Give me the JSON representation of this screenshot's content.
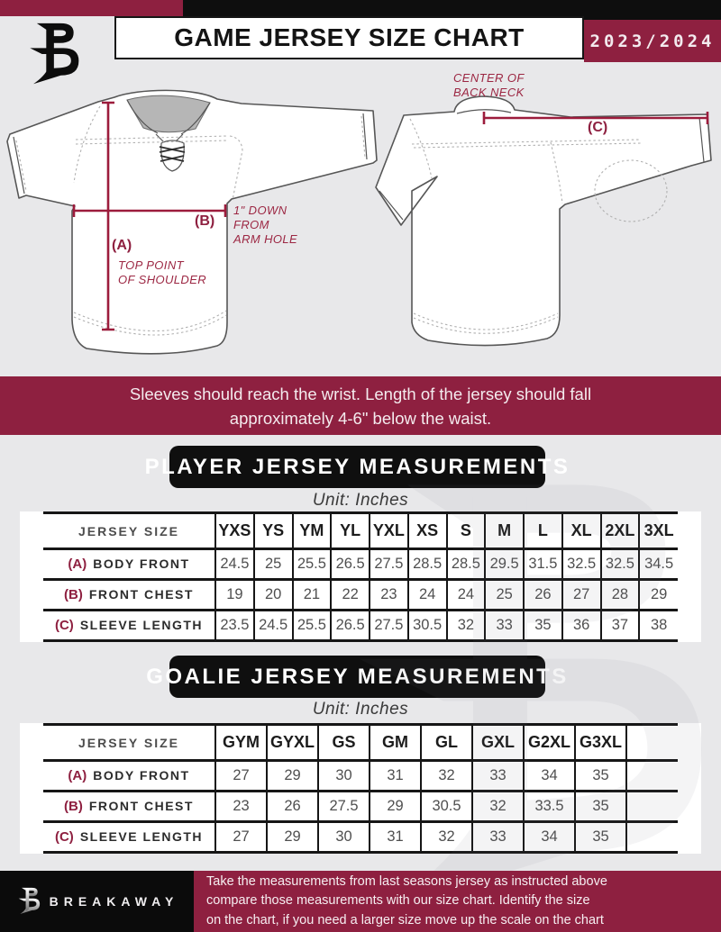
{
  "header": {
    "title": "GAME JERSEY SIZE CHART",
    "season": "2023/2024"
  },
  "diagram": {
    "front": {
      "a_key": "(A)",
      "a_caption": "TOP POINT\nOF SHOULDER",
      "b_key": "(B)",
      "b_caption": "1\" DOWN\nFROM\nARM HOLE"
    },
    "back": {
      "c_key": "(C)",
      "c_caption": "CENTER OF\nBACK NECK"
    }
  },
  "notice": "Sleeves should reach the wrist. Length of the jersey should fall\napproximately 4-6\" below the waist.",
  "player_table": {
    "title": "PLAYER JERSEY MEASUREMENTS",
    "unit": "Unit: Inches",
    "corner_label": "JERSEY SIZE",
    "columns": [
      "YXS",
      "YS",
      "YM",
      "YL",
      "YXL",
      "XS",
      "S",
      "M",
      "L",
      "XL",
      "2XL",
      "3XL"
    ],
    "rows": [
      {
        "key": "(A)",
        "label": "BODY FRONT",
        "values": [
          "24.5",
          "25",
          "25.5",
          "26.5",
          "27.5",
          "28.5",
          "28.5",
          "29.5",
          "31.5",
          "32.5",
          "32.5",
          "34.5"
        ]
      },
      {
        "key": "(B)",
        "label": "FRONT CHEST",
        "values": [
          "19",
          "20",
          "21",
          "22",
          "23",
          "24",
          "24",
          "25",
          "26",
          "27",
          "28",
          "29"
        ]
      },
      {
        "key": "(C)",
        "label": "SLEEVE LENGTH",
        "values": [
          "23.5",
          "24.5",
          "25.5",
          "26.5",
          "27.5",
          "30.5",
          "32",
          "33",
          "35",
          "36",
          "37",
          "38"
        ]
      }
    ]
  },
  "goalie_table": {
    "title": "GOALIE JERSEY MEASUREMENTS",
    "unit": "Unit: Inches",
    "corner_label": "JERSEY SIZE",
    "columns": [
      "GYM",
      "GYXL",
      "GS",
      "GM",
      "GL",
      "GXL",
      "G2XL",
      "G3XL",
      ""
    ],
    "rows": [
      {
        "key": "(A)",
        "label": "BODY FRONT",
        "values": [
          "27",
          "29",
          "30",
          "31",
          "32",
          "33",
          "34",
          "35",
          ""
        ]
      },
      {
        "key": "(B)",
        "label": "FRONT CHEST",
        "values": [
          "23",
          "26",
          "27.5",
          "29",
          "30.5",
          "32",
          "33.5",
          "35",
          ""
        ]
      },
      {
        "key": "(C)",
        "label": "SLEEVE LENGTH",
        "values": [
          "27",
          "29",
          "30",
          "31",
          "32",
          "33",
          "34",
          "35",
          ""
        ]
      }
    ]
  },
  "footer": {
    "brand": "BREAKAWAY",
    "note": "Take the measurements from last seasons jersey as instructed above\ncompare those measurements with our size chart. Identify the size\non the chart, if you need a larger size move up the scale on the chart"
  },
  "colors": {
    "maroon": "#8e2040",
    "black": "#0e0e0e",
    "measure_line": "#9c1c3c",
    "page_background": "#e8e8ea"
  }
}
